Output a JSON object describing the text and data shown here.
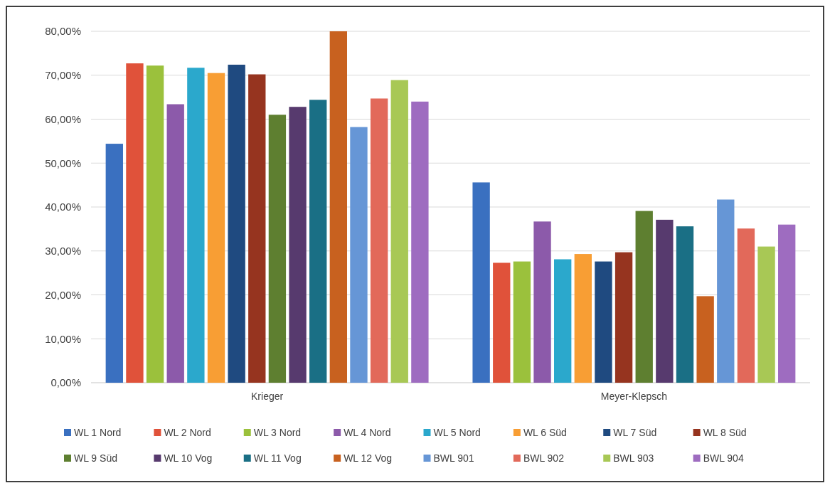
{
  "chart_data": {
    "type": "bar",
    "categories": [
      "Krieger",
      "Meyer-Klepsch"
    ],
    "series": [
      {
        "name": "WL 1 Nord",
        "color": "#3a70c0",
        "values": [
          54.4,
          45.6
        ]
      },
      {
        "name": "WL 2 Nord",
        "color": "#e0523a",
        "values": [
          72.7,
          27.3
        ]
      },
      {
        "name": "WL 3 Nord",
        "color": "#9bc13c",
        "values": [
          72.2,
          27.6
        ]
      },
      {
        "name": "WL 4 Nord",
        "color": "#8c5aaa",
        "values": [
          63.4,
          36.7
        ]
      },
      {
        "name": "WL 5 Nord",
        "color": "#2ba8cc",
        "values": [
          71.7,
          28.1
        ]
      },
      {
        "name": "WL 6 Süd",
        "color": "#f89e34",
        "values": [
          70.5,
          29.3
        ]
      },
      {
        "name": "WL 7 Süd",
        "color": "#1f4a80",
        "values": [
          72.4,
          27.6
        ]
      },
      {
        "name": "WL 8 Süd",
        "color": "#96341f",
        "values": [
          70.2,
          29.7
        ]
      },
      {
        "name": "WL 9 Süd",
        "color": "#5e7f30",
        "values": [
          61.0,
          39.1
        ]
      },
      {
        "name": "WL 10 Vog",
        "color": "#573a6e",
        "values": [
          62.8,
          37.1
        ]
      },
      {
        "name": "WL 11 Vog",
        "color": "#1a6f85",
        "values": [
          64.4,
          35.6
        ]
      },
      {
        "name": "WL 12 Vog",
        "color": "#c8611f",
        "values": [
          80.0,
          19.7
        ]
      },
      {
        "name": "BWL 901",
        "color": "#6696d6",
        "values": [
          58.2,
          41.7
        ]
      },
      {
        "name": "BWL 902",
        "color": "#e2695a",
        "values": [
          64.7,
          35.1
        ]
      },
      {
        "name": "BWL 903",
        "color": "#a8c855",
        "values": [
          68.9,
          31.0
        ]
      },
      {
        "name": "BWL 904",
        "color": "#9e6cc0",
        "values": [
          64.0,
          36.0
        ]
      }
    ],
    "ylim": [
      0,
      80
    ],
    "yticks": [
      {
        "value": 0,
        "label": "0,00%"
      },
      {
        "value": 10,
        "label": "10,00%"
      },
      {
        "value": 20,
        "label": "20,00%"
      },
      {
        "value": 30,
        "label": "30,00%"
      },
      {
        "value": 40,
        "label": "40,00%"
      },
      {
        "value": 50,
        "label": "50,00%"
      },
      {
        "value": 60,
        "label": "60,00%"
      },
      {
        "value": 70,
        "label": "70,00%"
      },
      {
        "value": 80,
        "label": "80,00%"
      }
    ],
    "grid": "y",
    "legend": "bottom"
  }
}
